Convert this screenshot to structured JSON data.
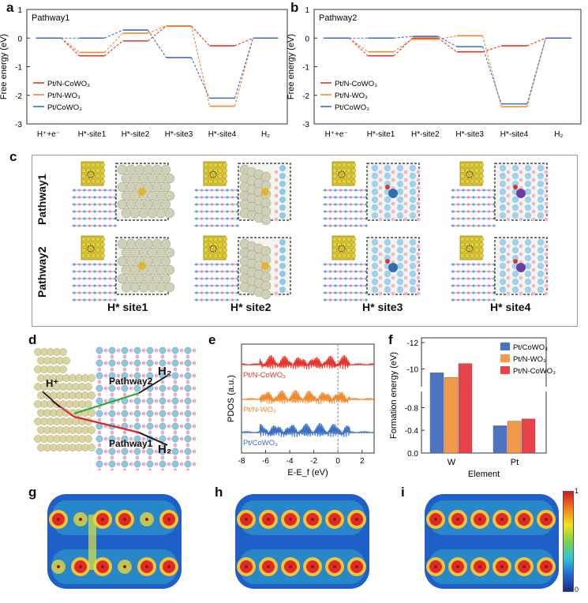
{
  "panel_labels": {
    "a": "a",
    "b": "b",
    "c": "c",
    "d": "d",
    "e": "e",
    "f": "f",
    "g": "g",
    "h": "h",
    "i": "i"
  },
  "chart_data": [
    {
      "id": "a",
      "type": "line",
      "title": "Pathway1",
      "ylabel": "Free energy (eV)",
      "ylim": [
        -3,
        1
      ],
      "yticks": [
        "1",
        "0",
        "-1",
        "-2",
        "-3"
      ],
      "categories": [
        "H⁺+e⁻",
        "H*-site1",
        "H*-site2",
        "H*-site3",
        "H*-site4",
        "H₂"
      ],
      "series": [
        {
          "name": "Pt/N-CoWO₃",
          "color": "#e8352b",
          "values": [
            0,
            -0.62,
            -0.1,
            0.42,
            -0.27,
            0
          ]
        },
        {
          "name": "Pt/N-WO₃",
          "color": "#f08a2e",
          "values": [
            0,
            -0.5,
            0.17,
            0.43,
            -2.38,
            0
          ]
        },
        {
          "name": "Pt/CoWO₃",
          "color": "#3b6fc4",
          "values": [
            0,
            0,
            0.28,
            -0.68,
            -2.1,
            0
          ]
        }
      ]
    },
    {
      "id": "b",
      "type": "line",
      "title": "Pathway2",
      "ylabel": "Free energy (eV)",
      "ylim": [
        -3,
        1
      ],
      "yticks": [
        "1",
        "0",
        "-1",
        "-2",
        "-3"
      ],
      "categories": [
        "H⁺+e⁻",
        "H*-site1",
        "H*-site2",
        "H*-site3",
        "H*-site4",
        "H₂"
      ],
      "series": [
        {
          "name": "Pt/N-CoWO₃",
          "color": "#e8352b",
          "values": [
            0,
            -0.62,
            0,
            -0.48,
            -0.27,
            0
          ]
        },
        {
          "name": "Pt/N-WO₃",
          "color": "#f08a2e",
          "values": [
            0,
            -0.48,
            -0.04,
            0.08,
            -2.4,
            0
          ]
        },
        {
          "name": "Pt/CoWO₃",
          "color": "#3b6fc4",
          "values": [
            0,
            0,
            0.06,
            -0.3,
            -2.3,
            0
          ]
        }
      ]
    },
    {
      "id": "e",
      "type": "line",
      "xlabel": "E-E_f (eV)",
      "ylabel": "PDOS (a.u.)",
      "xlim": [
        -8,
        3
      ],
      "xticks": [
        "-8",
        "-6",
        "-4",
        "-2",
        "0",
        "2"
      ],
      "series": [
        {
          "name": "Pt/N-CoWO₃",
          "color": "#e8352b"
        },
        {
          "name": "Pt/N-WO₃",
          "color": "#f08a2e"
        },
        {
          "name": "Pt/CoWO₃",
          "color": "#3b6fc4"
        }
      ]
    },
    {
      "id": "f",
      "type": "bar",
      "xlabel": "Element",
      "ylabel": "Formation energy (eV)",
      "categories": [
        "W",
        "Pt"
      ],
      "yticks_upper": [
        "-12",
        "-10"
      ],
      "yticks_lower": [
        "-0.8",
        "-0.4",
        "0.0"
      ],
      "series": [
        {
          "name": "Pt/CoWO₃",
          "color": "#4d74c2",
          "values": [
            -9.7,
            -0.48
          ]
        },
        {
          "name": "Pt/N-WO₃",
          "color": "#f39a4a",
          "values": [
            -9.35,
            -0.56
          ]
        },
        {
          "name": "Pt/N-CoWO₃",
          "color": "#e8424a",
          "values": [
            -10.4,
            -0.6
          ]
        }
      ]
    }
  ],
  "panel_c": {
    "row_labels": [
      "Pathway1",
      "Pathway2"
    ],
    "site_labels": [
      "H* site1",
      "H* site2",
      "H* site3",
      "H* site4"
    ]
  },
  "panel_d": {
    "labels": {
      "h_plus": "H⁺",
      "pathway1": "Pathway1",
      "pathway2": "Pathway2",
      "h2": "H₂"
    }
  },
  "colorbar": {
    "top": "1",
    "bottom": "0"
  }
}
